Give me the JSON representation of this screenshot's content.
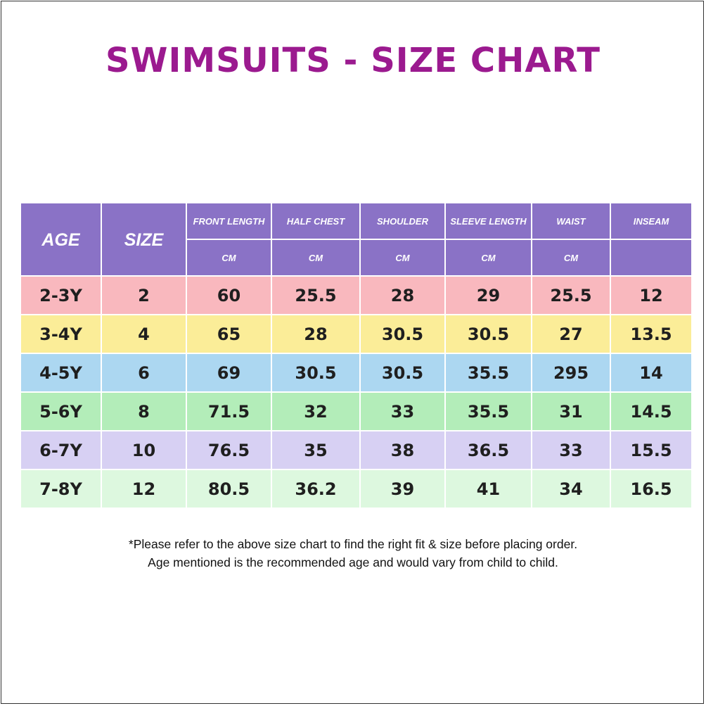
{
  "title": "SWIMSUITS - SIZE CHART",
  "table": {
    "age_header": "AGE",
    "size_header": "SIZE",
    "measure_headers": [
      "FRONT LENGTH",
      "HALF CHEST",
      "SHOULDER",
      "SLEEVE LENGTH",
      "WAIST",
      "INSEAM"
    ],
    "unit_headers": [
      "CM",
      "CM",
      "CM",
      "CM",
      "CM",
      ""
    ],
    "rows": [
      [
        "2-3Y",
        "2",
        "60",
        "25.5",
        "28",
        "29",
        "25.5",
        "12"
      ],
      [
        "3-4Y",
        "4",
        "65",
        "28",
        "30.5",
        "30.5",
        "27",
        "13.5"
      ],
      [
        "4-5Y",
        "6",
        "69",
        "30.5",
        "30.5",
        "35.5",
        "295",
        "14"
      ],
      [
        "5-6Y",
        "8",
        "71.5",
        "32",
        "33",
        "35.5",
        "31",
        "14.5"
      ],
      [
        "6-7Y",
        "10",
        "76.5",
        "35",
        "38",
        "36.5",
        "33",
        "15.5"
      ],
      [
        "7-8Y",
        "12",
        "80.5",
        "36.2",
        "39",
        "41",
        "34",
        "16.5"
      ]
    ],
    "row_colors": [
      "#f9b8be",
      "#fbed98",
      "#acd7f1",
      "#b3edb9",
      "#d7d0f3",
      "#ddf8df"
    ],
    "header_color": "#8a72c6"
  },
  "notes": [
    "*Please refer to the above size chart to find the right fit & size before placing order.",
    "Age mentioned is the recommended age and would vary from child to child."
  ],
  "colors": {
    "title": "#9b1a8f",
    "border": "#333333"
  }
}
